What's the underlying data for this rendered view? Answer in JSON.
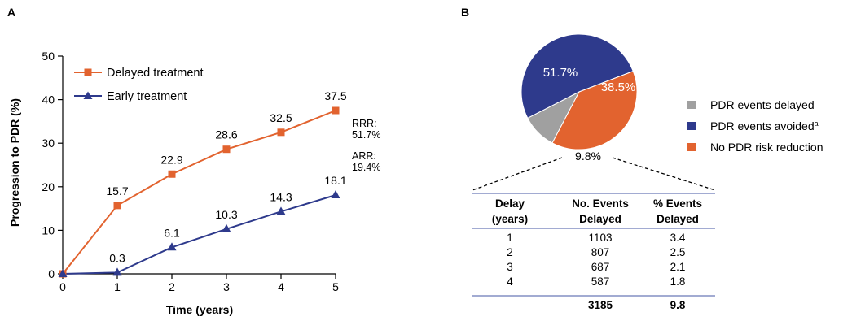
{
  "panel_a_letter": "A",
  "panel_b_letter": "B",
  "chart_data": [
    {
      "type": "line",
      "ylabel": "Progression to PDR (%)",
      "xlabel": "Time (years)",
      "x": [
        0,
        1,
        2,
        3,
        4,
        5
      ],
      "xlim": [
        0,
        5
      ],
      "ylim": [
        0,
        50
      ],
      "yticks": [
        0,
        10,
        20,
        30,
        40,
        50
      ],
      "xticks": [
        0,
        1,
        2,
        3,
        4,
        5
      ],
      "grid": false,
      "legend_position": "top-left",
      "series": [
        {
          "name": "Delayed treatment",
          "color": "#e2632f",
          "marker": "square",
          "values": [
            0,
            15.7,
            22.9,
            28.6,
            32.5,
            37.5
          ],
          "labels": [
            "",
            "15.7",
            "22.9",
            "28.6",
            "32.5",
            "37.5"
          ]
        },
        {
          "name": "Early treatment",
          "color": "#2e3a8c",
          "marker": "triangle",
          "values": [
            0,
            0.3,
            6.1,
            10.3,
            14.3,
            18.1
          ],
          "labels": [
            "",
            "0.3",
            "6.1",
            "10.3",
            "14.3",
            "18.1"
          ]
        }
      ],
      "annotations": {
        "rrr_label": "RRR:",
        "rrr_value": "51.7%",
        "arr_label": "ARR:",
        "arr_value": "19.4%"
      }
    },
    {
      "type": "pie",
      "slices": [
        {
          "name": "PDR events delayed",
          "value": 9.8,
          "label": "9.8%",
          "color": "#a0a0a0"
        },
        {
          "name": "PDR events avoided",
          "superscript": "a",
          "value": 51.7,
          "label": "51.7%",
          "color": "#2e3a8c"
        },
        {
          "name": "No PDR risk reduction",
          "value": 38.5,
          "label": "38.5%",
          "color": "#e2632f"
        }
      ],
      "legend_position": "right"
    },
    {
      "type": "table",
      "headers": [
        [
          "Delay",
          "(years)"
        ],
        [
          "No. Events",
          "Delayed"
        ],
        [
          "% Events",
          "Delayed"
        ]
      ],
      "rows": [
        [
          "1",
          "1103",
          "3.4"
        ],
        [
          "2",
          "807",
          "2.5"
        ],
        [
          "3",
          "687",
          "2.1"
        ],
        [
          "4",
          "587",
          "1.8"
        ]
      ],
      "total": [
        "",
        "3185",
        "9.8"
      ]
    }
  ]
}
